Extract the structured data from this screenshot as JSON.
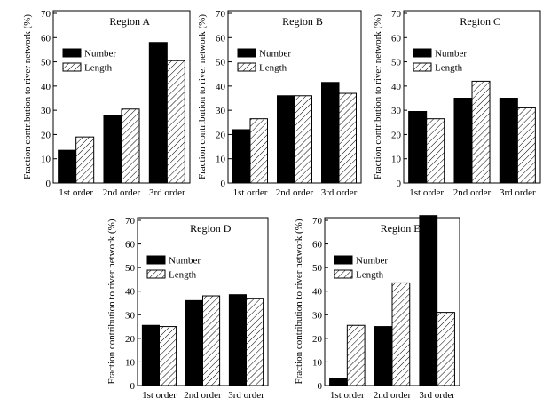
{
  "chart_data": [
    {
      "type": "bar",
      "title": "Region A",
      "ylabel": "Fraction contribution to river network (%)",
      "xlabel": "",
      "categories": [
        "1st order",
        "2nd order",
        "3rd order"
      ],
      "series": [
        {
          "name": "Number",
          "values": [
            13.5,
            28,
            58
          ]
        },
        {
          "name": "Length",
          "values": [
            19,
            30.5,
            50.5
          ]
        }
      ],
      "ylim": [
        0,
        70
      ],
      "yticks": [
        0,
        10,
        20,
        30,
        40,
        50,
        60,
        70
      ],
      "legend": "upper-left"
    },
    {
      "type": "bar",
      "title": "Region B",
      "ylabel": "Fraction contribution to river network (%)",
      "xlabel": "",
      "categories": [
        "1st order",
        "2nd order",
        "3rd order"
      ],
      "series": [
        {
          "name": "Number",
          "values": [
            22,
            36,
            41.5
          ]
        },
        {
          "name": "Length",
          "values": [
            26.5,
            36,
            37
          ]
        }
      ],
      "ylim": [
        0,
        70
      ],
      "yticks": [
        0,
        10,
        20,
        30,
        40,
        50,
        60,
        70
      ],
      "legend": "upper-left"
    },
    {
      "type": "bar",
      "title": "Region C",
      "ylabel": "Fraction contribution to river network (%)",
      "xlabel": "",
      "categories": [
        "1st order",
        "2nd order",
        "3rd order"
      ],
      "series": [
        {
          "name": "Number",
          "values": [
            29.5,
            35,
            35
          ]
        },
        {
          "name": "Length",
          "values": [
            26.5,
            42,
            31
          ]
        }
      ],
      "ylim": [
        0,
        70
      ],
      "yticks": [
        0,
        10,
        20,
        30,
        40,
        50,
        60,
        70
      ],
      "legend": "upper-left"
    },
    {
      "type": "bar",
      "title": "Region D",
      "ylabel": "Fraction contribution to river network (%)",
      "xlabel": "",
      "categories": [
        "1st order",
        "2nd order",
        "3rd order"
      ],
      "series": [
        {
          "name": "Number",
          "values": [
            25.5,
            36,
            38.5
          ]
        },
        {
          "name": "Length",
          "values": [
            25,
            38,
            37
          ]
        }
      ],
      "ylim": [
        0,
        70
      ],
      "yticks": [
        0,
        10,
        20,
        30,
        40,
        50,
        60,
        70
      ],
      "legend": "upper-left"
    },
    {
      "type": "bar",
      "title": "Region E",
      "ylabel": "Fraction contribution to river network (%)",
      "xlabel": "",
      "categories": [
        "1st order",
        "2nd order",
        "3rd order"
      ],
      "series": [
        {
          "name": "Number",
          "values": [
            3,
            25,
            72
          ]
        },
        {
          "name": "Length",
          "values": [
            25.5,
            43.5,
            31
          ]
        }
      ],
      "ylim": [
        0,
        70
      ],
      "yticks": [
        0,
        10,
        20,
        30,
        40,
        50,
        60,
        70
      ],
      "legend": "upper-left"
    }
  ]
}
